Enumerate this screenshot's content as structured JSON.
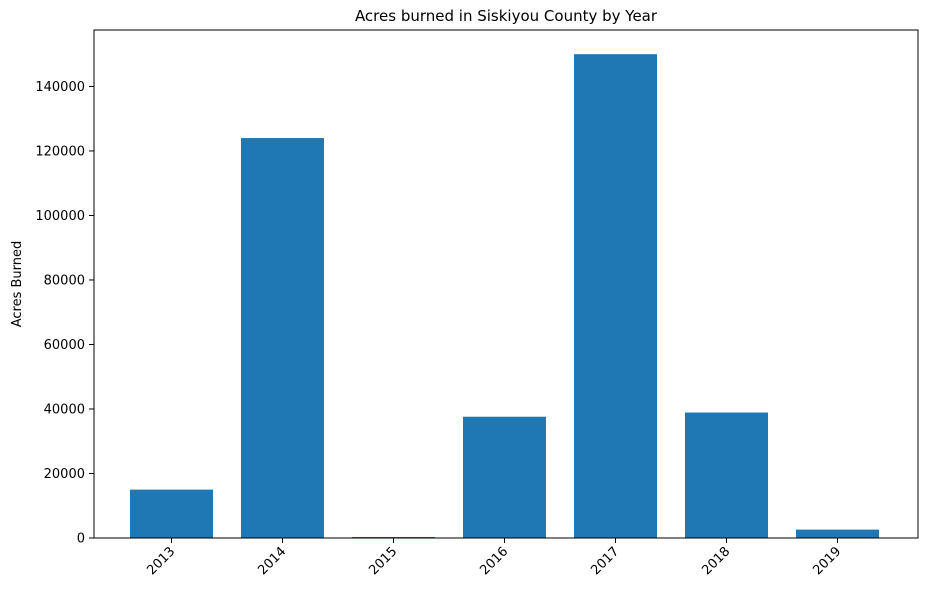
{
  "chart_data": {
    "type": "bar",
    "title": "Acres burned in Siskiyou County by Year",
    "xlabel": "",
    "ylabel": "Acres Burned",
    "categories": [
      "2013",
      "2014",
      "2015",
      "2016",
      "2017",
      "2018",
      "2019"
    ],
    "values": [
      15000,
      124000,
      300,
      37600,
      150000,
      38900,
      2600
    ],
    "ylim": [
      0,
      157500
    ],
    "yticks": [
      0,
      20000,
      40000,
      60000,
      80000,
      100000,
      120000,
      140000
    ],
    "ytick_labels": [
      "0",
      "20000",
      "40000",
      "60000",
      "80000",
      "100000",
      "120000",
      "140000"
    ],
    "grid": false,
    "legend": "none",
    "bar_color": "#1f77b4"
  }
}
